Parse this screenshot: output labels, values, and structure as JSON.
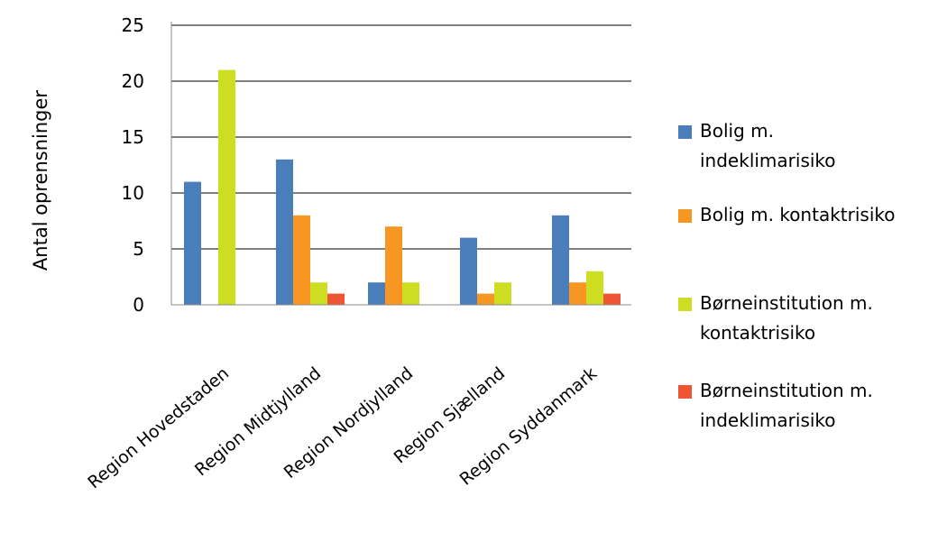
{
  "chart_data": {
    "type": "bar",
    "ylabel": "Antal oprensninger",
    "xlabel": "",
    "ylim": [
      0,
      25
    ],
    "yticks": [
      0,
      5,
      10,
      15,
      20,
      25
    ],
    "grid": true,
    "legend_position": "right",
    "categories": [
      "Region Hovedstaden",
      "Region Midtjylland",
      "Region Nordjylland",
      "Region Sjælland",
      "Region Syddanmark"
    ],
    "series": [
      {
        "name": "Bolig m. indeklimarisiko",
        "legend_lines": [
          "Bolig m.",
          "indeklimarisiko"
        ],
        "color": "#4A7EBB",
        "values": [
          11,
          13,
          2,
          6,
          8
        ]
      },
      {
        "name": "Bolig m. kontaktrisiko",
        "legend_lines": [
          "Bolig m. kontaktrisiko"
        ],
        "color": "#F79620",
        "values": [
          0,
          8,
          7,
          1,
          2
        ]
      },
      {
        "name": "Børneinstitution m. kontaktrisiko",
        "legend_lines": [
          "Børneinstitution m.",
          "kontaktrisiko"
        ],
        "color": "#CCDD22",
        "values": [
          21,
          2,
          2,
          2,
          3
        ]
      },
      {
        "name": "Børneinstitution m. indeklimarisiko",
        "legend_lines": [
          "Børneinstitution m.",
          "indeklimarisiko"
        ],
        "color": "#EE5533",
        "values": [
          0,
          1,
          0,
          0,
          1
        ]
      }
    ]
  }
}
